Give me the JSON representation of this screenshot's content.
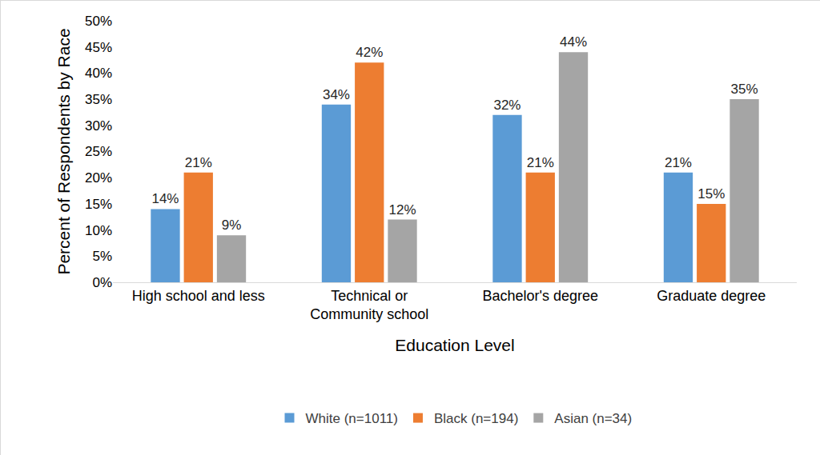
{
  "chart_data": {
    "type": "bar",
    "x_label": "Education Level",
    "y_label": "Percent of Respondents by Race",
    "categories": [
      "High school and less",
      "Technical or\nCommunity school",
      "Bachelor's degree",
      "Graduate degree"
    ],
    "series": [
      {
        "name": "White (n=1011)",
        "color": "#5b9bd5",
        "values": [
          14,
          34,
          32,
          21
        ],
        "value_labels": [
          "14%",
          "34%",
          "32%",
          "21%"
        ]
      },
      {
        "name": "Black (n=194)",
        "color": "#ed7d31",
        "values": [
          21,
          42,
          21,
          15
        ],
        "value_labels": [
          "21%",
          "42%",
          "21%",
          "15%"
        ]
      },
      {
        "name": "Asian (n=34)",
        "color": "#a5a5a5",
        "values": [
          9,
          12,
          44,
          35
        ],
        "value_labels": [
          "9%",
          "12%",
          "44%",
          "35%"
        ]
      }
    ],
    "ylim": [
      0,
      50
    ],
    "yticks": [
      {
        "value": 0,
        "label": "0%"
      },
      {
        "value": 5,
        "label": "5%"
      },
      {
        "value": 10,
        "label": "10%"
      },
      {
        "value": 15,
        "label": "15%"
      },
      {
        "value": 20,
        "label": "20%"
      },
      {
        "value": 25,
        "label": "25%"
      },
      {
        "value": 30,
        "label": "30%"
      },
      {
        "value": 35,
        "label": "35%"
      },
      {
        "value": 40,
        "label": "40%"
      },
      {
        "value": 45,
        "label": "45%"
      },
      {
        "value": 50,
        "label": "50%"
      }
    ],
    "grid": false,
    "legend": "bottom",
    "data_labels": true
  }
}
